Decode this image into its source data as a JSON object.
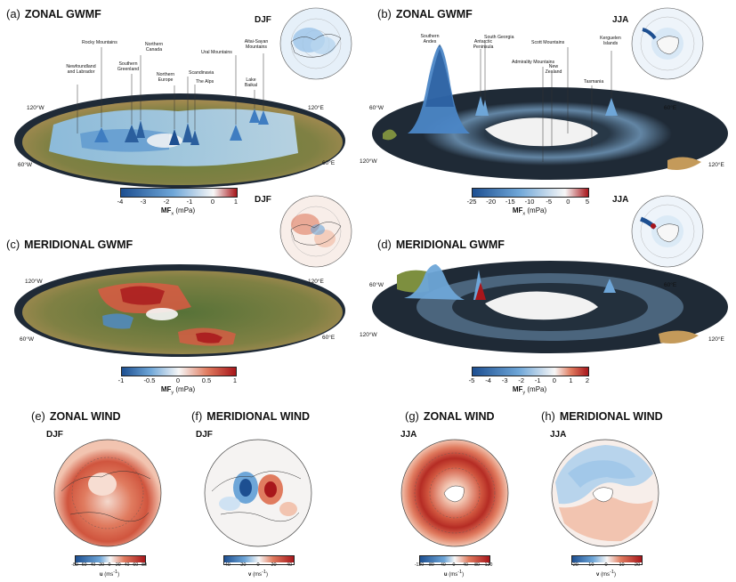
{
  "panels": {
    "a": {
      "tag": "(a)",
      "title": "ZONAL GWMF",
      "season": "DJF",
      "annotations": [
        "Rocky Mountains",
        "Newfoundland and Labrador",
        "Southern Greenland",
        "Northern Canada",
        "Northern Europe",
        "Scandinavia",
        "The Alps",
        "Ural Mountains",
        "Lake Baikal",
        "Altai-Sayan Mountains"
      ],
      "lon": {
        "w120": "120°W",
        "e120": "120°E",
        "w60": "60°W",
        "e60": "60°E"
      },
      "colorbar": {
        "ticks": [
          "-4",
          "-3",
          "-2",
          "-1",
          "0",
          "1"
        ],
        "label": "MF",
        "sub": "x",
        "unit": "(mPa)"
      }
    },
    "b": {
      "tag": "(b)",
      "title": "ZONAL GWMF",
      "season": "JJA",
      "annotations": [
        "Southern Andes",
        "Antarctic Peninsula",
        "South Georgia",
        "Admirality Mountains",
        "Scott Mountains",
        "New Zealand",
        "Kerguelen Islands",
        "Tasmania"
      ],
      "lon": {
        "w60": "60°W",
        "e60": "60°E",
        "w120": "120°W",
        "e120": "120°E"
      },
      "colorbar": {
        "ticks": [
          "-25",
          "-20",
          "-15",
          "-10",
          "-5",
          "0",
          "5"
        ],
        "label": "MF",
        "sub": "x",
        "unit": "(mPa)"
      }
    },
    "c": {
      "tag": "(c)",
      "title": "MERIDIONAL GWMF",
      "season": "DJF",
      "lon": {
        "w120": "120°W",
        "e120": "120°E",
        "w60": "60°W",
        "e60": "60°E"
      },
      "colorbar": {
        "ticks": [
          "-1",
          "-0.5",
          "0",
          "0.5",
          "1"
        ],
        "label": "MF",
        "sub": "y",
        "unit": "(mPa)"
      }
    },
    "d": {
      "tag": "(d)",
      "title": "MERIDIONAL GWMF",
      "season": "JJA",
      "lon": {
        "w60": "60°W",
        "e60": "60°E",
        "w120": "120°W",
        "e120": "120°E"
      },
      "colorbar": {
        "ticks": [
          "-5",
          "-4",
          "-3",
          "-2",
          "-1",
          "0",
          "1",
          "2"
        ],
        "label": "MF",
        "sub": "y",
        "unit": "(mPa)"
      }
    },
    "e": {
      "tag": "(e)",
      "title": "ZONAL WIND",
      "season": "DJF",
      "colorbar": {
        "ticks": [
          "-80",
          "-60",
          "-40",
          "-20",
          "0",
          "20",
          "40",
          "60",
          "80"
        ],
        "label": "u",
        "unit": "(ms",
        "sup": "-1",
        "close": ")"
      }
    },
    "f": {
      "tag": "(f)",
      "title": "MERIDIONAL WIND",
      "season": "DJF",
      "colorbar": {
        "ticks": [
          "-40",
          "-20",
          "0",
          "20",
          "40"
        ],
        "label": "v",
        "unit": "(ms",
        "sup": "-1",
        "close": ")"
      }
    },
    "g": {
      "tag": "(g)",
      "title": "ZONAL WIND",
      "season": "JJA",
      "colorbar": {
        "ticks": [
          "-120",
          "-80",
          "-40",
          "0",
          "40",
          "80",
          "120"
        ],
        "label": "u",
        "unit": "(ms",
        "sup": "-1",
        "close": ")"
      }
    },
    "h": {
      "tag": "(h)",
      "title": "MERIDIONAL WIND",
      "season": "JJA",
      "colorbar": {
        "ticks": [
          "-20",
          "-10",
          "0",
          "10",
          "20"
        ],
        "label": "v",
        "unit": "(ms",
        "sup": "-1",
        "close": ")"
      }
    }
  },
  "colors": {
    "blue_dark": "#1d4f91",
    "blue_mid": "#6ea6d8",
    "blue_light": "#cfe2f3",
    "white": "#f7f7f7",
    "red_light": "#f2c4b0",
    "red_mid": "#e07b5f",
    "red_dark": "#a8161b",
    "ocean": "#1f2a36",
    "land": "#7d8f3f",
    "desert": "#c49a5a"
  }
}
